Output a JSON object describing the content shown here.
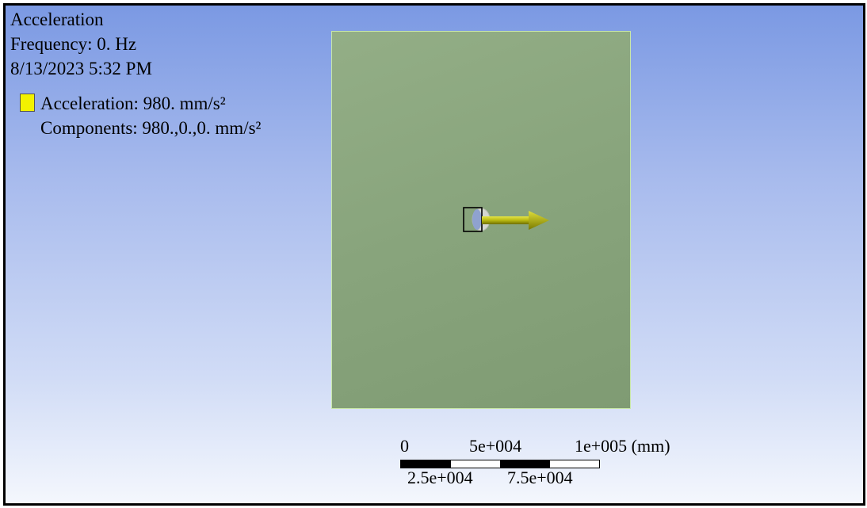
{
  "info": {
    "title": "Acceleration",
    "frequency": "Frequency: 0. Hz",
    "timestamp": "8/13/2023 5:32 PM"
  },
  "legend": {
    "swatch_color": "#f2f200",
    "acceleration_label": "Acceleration: 980. mm/s²",
    "components_label": "Components: 980.,0.,0. mm/s²"
  },
  "scale_bar": {
    "top_labels": [
      "0",
      "5e+004",
      "1e+005 (mm)"
    ],
    "bottom_labels": [
      "2.5e+004",
      "7.5e+004"
    ]
  },
  "colors": {
    "plate": "#88a47c",
    "arrow": "#c8c81a"
  }
}
